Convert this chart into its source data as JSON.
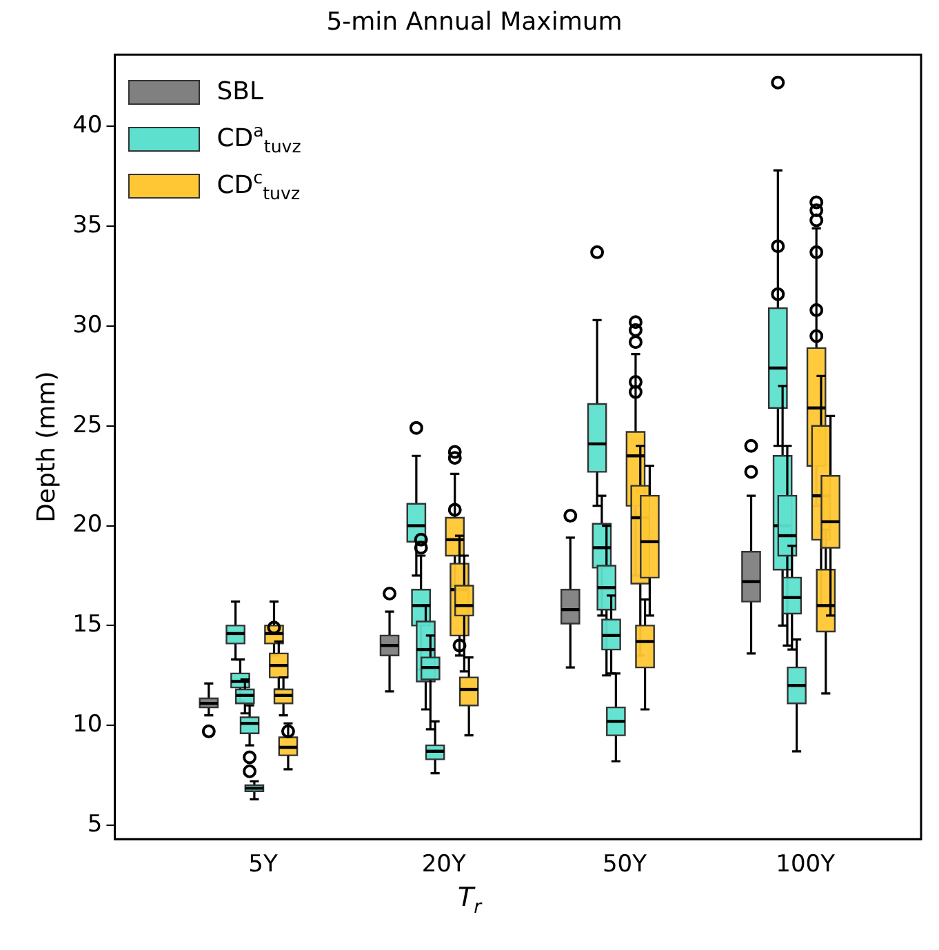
{
  "chart_data": {
    "type": "box",
    "title": "5-min Annual Maximum",
    "xlabel": "T$_{r}$",
    "ylabel": "Depth (mm)",
    "categories": [
      "5Y",
      "20Y",
      "50Y",
      "100Y"
    ],
    "ylim": [
      4.3,
      43.6
    ],
    "yticks": [
      5,
      10,
      15,
      20,
      25,
      30,
      35,
      40
    ],
    "grid": false,
    "legend": "top left",
    "marker": "circle",
    "series": [
      {
        "name": "SBL",
        "color": "#808080",
        "boxes": [
          {
            "low": 10.5,
            "q1": 10.9,
            "median": 11.1,
            "q3": 11.35,
            "high": 12.1,
            "outliers": [
              9.7
            ]
          },
          {
            "low": 11.7,
            "q1": 13.5,
            "median": 14.0,
            "q3": 14.5,
            "high": 15.7,
            "outliers": [
              16.6
            ]
          },
          {
            "low": 12.9,
            "q1": 15.1,
            "median": 15.8,
            "q3": 16.8,
            "high": 19.4,
            "outliers": [
              20.5
            ]
          },
          {
            "low": 13.6,
            "q1": 16.2,
            "median": 17.2,
            "q3": 18.7,
            "high": 21.5,
            "outliers": [
              22.7,
              24.0
            ]
          }
        ]
      },
      {
        "name": "CD$^{a}$$_{tuvz}$",
        "color": "#5ee0cf",
        "boxes": [
          {
            "low": 13.3,
            "q1": 14.1,
            "median": 14.6,
            "q3": 15.0,
            "high": 16.2
          },
          {
            "low": 17.5,
            "q1": 19.2,
            "median": 20.0,
            "q3": 21.1,
            "high": 23.5,
            "outliers": [
              24.9
            ]
          },
          {
            "low": 21.0,
            "q1": 22.7,
            "median": 24.1,
            "q3": 26.1,
            "high": 30.3,
            "outliers": [
              33.7
            ]
          },
          {
            "low": 24.0,
            "q1": 25.9,
            "median": 27.9,
            "q3": 30.9,
            "high": 37.8,
            "outliers": [
              42.2,
              34.0,
              31.6
            ]
          }
        ]
      },
      {
        "color": "#5ee0cf",
        "boxes": [
          {
            "low": 11.2,
            "q1": 11.9,
            "median": 12.2,
            "q3": 12.6,
            "high": 13.3
          },
          {
            "low": 12.8,
            "q1": 15.0,
            "median": 16.0,
            "q3": 16.8,
            "high": 18.5,
            "outliers": [
              19.3,
              18.9
            ]
          },
          {
            "low": 15.5,
            "q1": 17.9,
            "median": 18.9,
            "q3": 20.1,
            "high": 21.5
          },
          {
            "low": 15.0,
            "q1": 17.8,
            "median": 20.0,
            "q3": 23.5,
            "high": 27.0
          }
        ]
      },
      {
        "color": "#5ee0cf",
        "boxes": [
          {
            "low": 10.6,
            "q1": 11.1,
            "median": 11.5,
            "q3": 11.8,
            "high": 12.3
          },
          {
            "low": 10.8,
            "q1": 12.2,
            "median": 13.8,
            "q3": 15.2,
            "high": 16.0
          },
          {
            "low": 12.5,
            "q1": 15.8,
            "median": 16.9,
            "q3": 18.0,
            "high": 20.0
          },
          {
            "low": 14.0,
            "q1": 18.5,
            "median": 19.5,
            "q3": 21.5,
            "high": 24.0
          }
        ]
      },
      {
        "color": "#5ee0cf",
        "boxes": [
          {
            "low": 9.0,
            "q1": 9.6,
            "median": 10.1,
            "q3": 10.4,
            "high": 11.0,
            "outliers": [
              8.4,
              7.7
            ]
          },
          {
            "low": 9.8,
            "q1": 12.3,
            "median": 12.9,
            "q3": 13.4,
            "high": 14.5
          },
          {
            "low": 12.6,
            "q1": 13.8,
            "median": 14.5,
            "q3": 15.3,
            "high": 16.5
          },
          {
            "low": 13.8,
            "q1": 15.6,
            "median": 16.4,
            "q3": 17.4,
            "high": 19.0
          }
        ]
      },
      {
        "color": "#5ee0cf",
        "boxes": [
          {
            "low": 6.3,
            "q1": 6.7,
            "median": 6.85,
            "q3": 7.0,
            "high": 7.2
          },
          {
            "low": 7.6,
            "q1": 8.3,
            "median": 8.7,
            "q3": 9.0,
            "high": 10.2
          },
          {
            "low": 8.2,
            "q1": 9.5,
            "median": 10.2,
            "q3": 10.9,
            "high": 12.6
          },
          {
            "low": 8.7,
            "q1": 11.1,
            "median": 12.0,
            "q3": 12.9,
            "high": 14.3
          }
        ]
      },
      {
        "name": "CD$^{c}$$_{tuvz}$",
        "color": "#ffc733",
        "boxes": [
          {
            "low": 13.5,
            "q1": 14.1,
            "median": 14.6,
            "q3": 15.0,
            "high": 16.2,
            "outliers": [
              14.9
            ]
          },
          {
            "low": 17.0,
            "q1": 18.5,
            "median": 19.3,
            "q3": 20.4,
            "high": 22.6,
            "outliers": [
              23.7,
              23.4,
              20.8
            ]
          },
          {
            "low": 17.5,
            "q1": 21.0,
            "median": 23.5,
            "q3": 24.7,
            "high": 28.6,
            "outliers": [
              30.2,
              29.8,
              29.2,
              27.2,
              26.7
            ]
          },
          {
            "low": 21.0,
            "q1": 23.0,
            "median": 25.9,
            "q3": 28.9,
            "high": 34.9,
            "outliers": [
              36.2,
              35.8,
              35.3,
              33.7,
              30.8,
              29.5
            ]
          }
        ]
      },
      {
        "color": "#ffc733",
        "boxes": [
          {
            "low": 11.8,
            "q1": 12.4,
            "median": 13.0,
            "q3": 13.6,
            "high": 14.2
          },
          {
            "low": 13.5,
            "q1": 14.5,
            "median": 16.8,
            "q3": 18.1,
            "high": 19.5,
            "outliers": [
              14.0
            ]
          },
          {
            "low": 13.5,
            "q1": 17.1,
            "median": 20.4,
            "q3": 22.0,
            "high": 24.0
          },
          {
            "low": 16.0,
            "q1": 19.3,
            "median": 21.5,
            "q3": 25.0,
            "high": 27.5
          }
        ]
      },
      {
        "color": "#ffc733",
        "boxes": [
          {
            "low": 10.5,
            "q1": 11.1,
            "median": 11.5,
            "q3": 11.8,
            "high": 12.4
          },
          {
            "low": 12.7,
            "q1": 15.5,
            "median": 16.0,
            "q3": 17.0,
            "high": 18.5
          },
          {
            "low": 10.8,
            "q1": 12.9,
            "median": 14.2,
            "q3": 15.0,
            "high": 16.3
          },
          {
            "low": 11.6,
            "q1": 14.7,
            "median": 16.0,
            "q3": 17.8,
            "high": 19.8
          }
        ]
      },
      {
        "color": "#ffc733",
        "boxes": [
          {
            "low": 7.8,
            "q1": 8.5,
            "median": 8.9,
            "q3": 9.4,
            "high": 10.1,
            "outliers": [
              9.7
            ]
          },
          {
            "low": 9.5,
            "q1": 11.0,
            "median": 11.8,
            "q3": 12.4,
            "high": 13.4
          },
          {
            "low": 15.5,
            "q1": 17.4,
            "median": 19.2,
            "q3": 21.5,
            "high": 23.0
          },
          {
            "low": 15.5,
            "q1": 18.9,
            "median": 20.2,
            "q3": 22.5,
            "high": 25.5
          }
        ]
      }
    ]
  }
}
